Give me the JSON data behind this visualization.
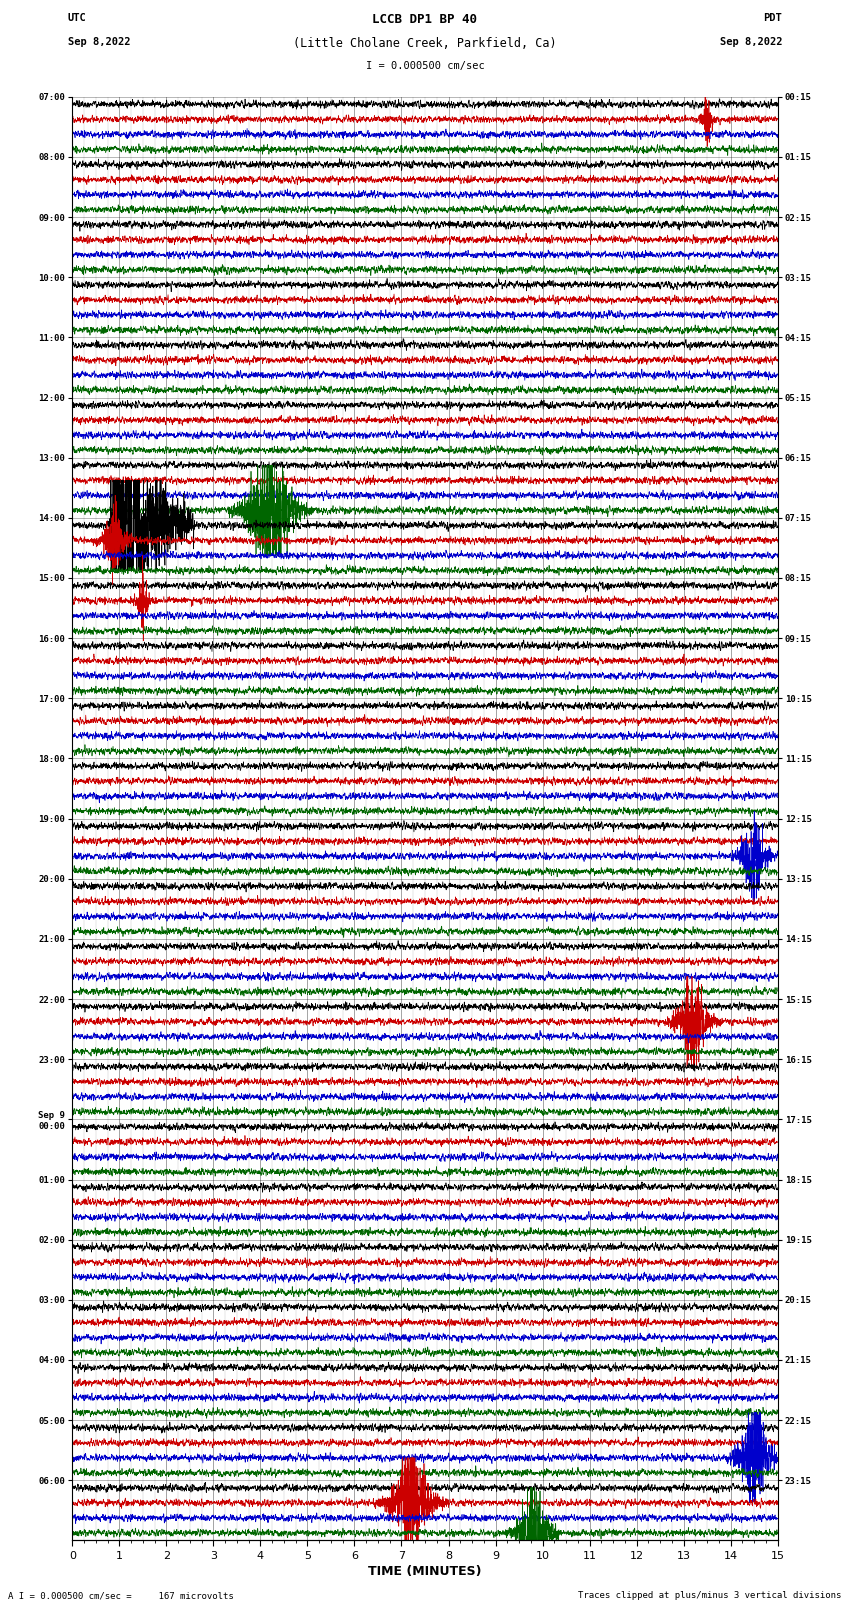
{
  "title_line1": "LCCB DP1 BP 40",
  "title_line2": "(Little Cholane Creek, Parkfield, Ca)",
  "scale_label": "I = 0.000500 cm/sec",
  "left_label": "UTC",
  "left_date": "Sep 8,2022",
  "right_label": "PDT",
  "right_date": "Sep 8,2022",
  "bottom_xlabel": "TIME (MINUTES)",
  "bottom_note_left": "A I = 0.000500 cm/sec =     167 microvolts",
  "bottom_note_right": "Traces clipped at plus/minus 3 vertical divisions",
  "utc_times": [
    "07:00",
    "08:00",
    "09:00",
    "10:00",
    "11:00",
    "12:00",
    "13:00",
    "14:00",
    "15:00",
    "16:00",
    "17:00",
    "18:00",
    "19:00",
    "20:00",
    "21:00",
    "22:00",
    "23:00",
    "Sep 9\n00:00",
    "01:00",
    "02:00",
    "03:00",
    "04:00",
    "05:00",
    "06:00"
  ],
  "pdt_times": [
    "00:15",
    "01:15",
    "02:15",
    "03:15",
    "04:15",
    "05:15",
    "06:15",
    "07:15",
    "08:15",
    "09:15",
    "10:15",
    "11:15",
    "12:15",
    "13:15",
    "14:15",
    "15:15",
    "16:15",
    "17:15",
    "18:15",
    "19:15",
    "20:15",
    "21:15",
    "22:15",
    "23:15"
  ],
  "n_rows": 24,
  "n_channels": 4,
  "channel_colors": [
    "#000000",
    "#cc0000",
    "#0000cc",
    "#006600"
  ],
  "noise_amplitude": 0.18,
  "fig_bg": "#ffffff",
  "xmin": 0,
  "xmax": 15,
  "events": [
    {
      "row": 0,
      "ch": 1,
      "minute": 13.5,
      "amp": 1.5,
      "dur": 0.25,
      "type": "spike"
    },
    {
      "row": 6,
      "ch": 3,
      "minute": 4.2,
      "amp": 4.5,
      "dur": 0.9,
      "type": "burst"
    },
    {
      "row": 7,
      "ch": 0,
      "minute": 0.8,
      "amp": 9.0,
      "dur": 1.8,
      "type": "quake"
    },
    {
      "row": 7,
      "ch": 1,
      "minute": 0.9,
      "amp": 2.0,
      "dur": 0.5,
      "type": "burst"
    },
    {
      "row": 8,
      "ch": 1,
      "minute": 1.5,
      "amp": 1.5,
      "dur": 0.3,
      "type": "spike"
    },
    {
      "row": 12,
      "ch": 2,
      "minute": 14.5,
      "amp": 3.0,
      "dur": 0.5,
      "type": "burst"
    },
    {
      "row": 15,
      "ch": 1,
      "minute": 13.2,
      "amp": 3.5,
      "dur": 0.6,
      "type": "burst"
    },
    {
      "row": 22,
      "ch": 2,
      "minute": 14.5,
      "amp": 4.0,
      "dur": 0.6,
      "type": "burst"
    },
    {
      "row": 23,
      "ch": 1,
      "minute": 7.2,
      "amp": 3.5,
      "dur": 0.8,
      "type": "burst"
    },
    {
      "row": 23,
      "ch": 3,
      "minute": 9.8,
      "amp": 3.5,
      "dur": 0.6,
      "type": "burst"
    }
  ]
}
